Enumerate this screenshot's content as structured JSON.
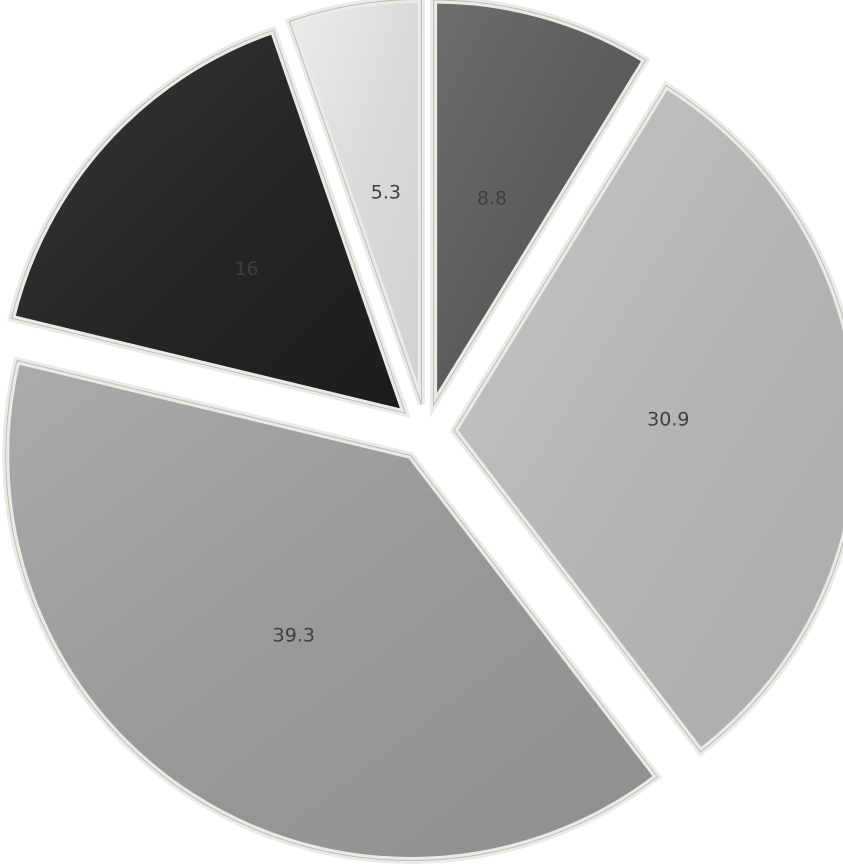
{
  "chart_data": {
    "type": "pie",
    "title": "",
    "exploded": true,
    "start_angle_deg": 0,
    "direction": "clockwise",
    "slices": [
      {
        "label": "8.8",
        "value": 8.8,
        "color": "#5c5c5c"
      },
      {
        "label": "30.9",
        "value": 30.9,
        "color": "#b5b5b5"
      },
      {
        "label": "39.3",
        "value": 39.3,
        "color": "#999999"
      },
      {
        "label": "16",
        "value": 16,
        "color": "#262626"
      },
      {
        "label": "5.3",
        "value": 5.3,
        "color": "#dadada"
      }
    ],
    "border_color": "#ebebe6"
  }
}
